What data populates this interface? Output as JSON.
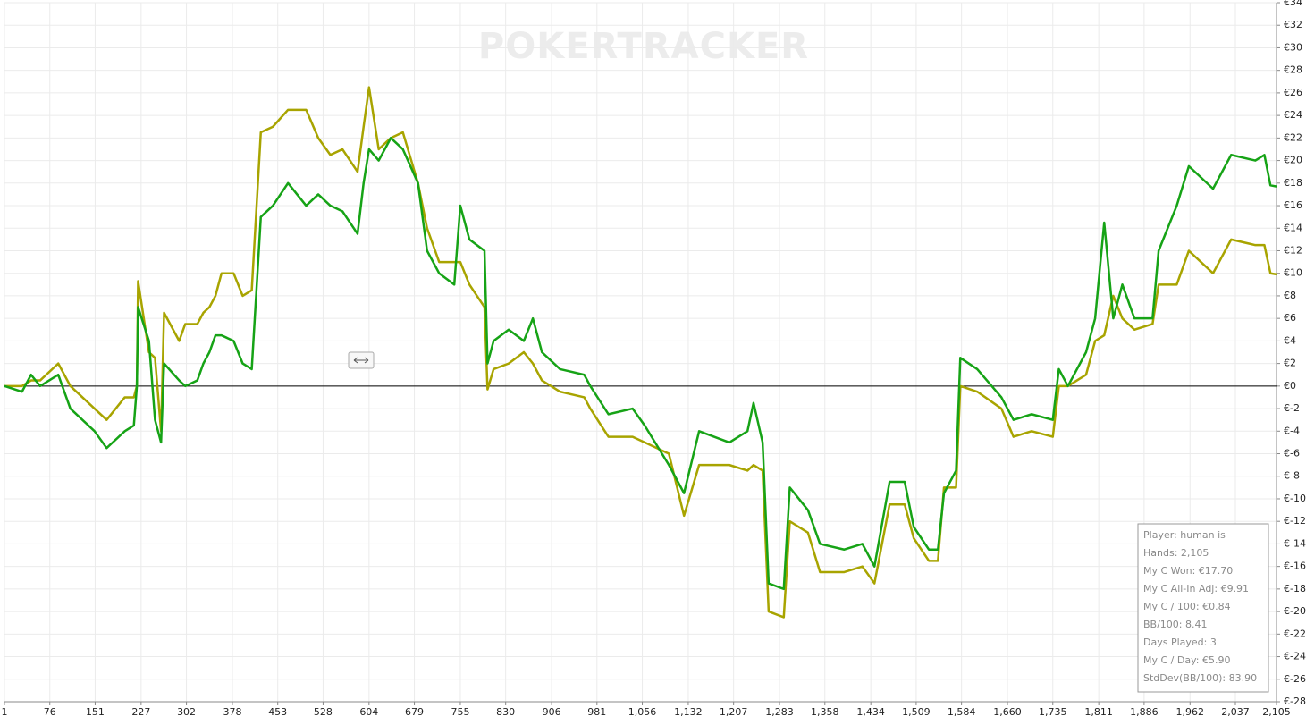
{
  "chart_data": {
    "type": "line",
    "watermark": "POKERTRACKER",
    "x": [
      1,
      30,
      45,
      60,
      90,
      110,
      150,
      170,
      200,
      215,
      220,
      222,
      240,
      250,
      260,
      265,
      290,
      300,
      320,
      330,
      340,
      350,
      360,
      380,
      395,
      410,
      425,
      445,
      470,
      500,
      520,
      540,
      560,
      585,
      595,
      604,
      620,
      640,
      660,
      685,
      700,
      720,
      745,
      755,
      770,
      795,
      800,
      810,
      835,
      860,
      875,
      890,
      920,
      960,
      970,
      1000,
      1040,
      1060,
      1100,
      1125,
      1150,
      1200,
      1230,
      1240,
      1255,
      1265,
      1290,
      1300,
      1330,
      1350,
      1390,
      1420,
      1440,
      1465,
      1490,
      1505,
      1530,
      1545,
      1555,
      1575,
      1582,
      1610,
      1650,
      1670,
      1700,
      1735,
      1745,
      1760,
      1790,
      1805,
      1820,
      1835,
      1850,
      1870,
      1900,
      1910,
      1940,
      1960,
      2000,
      2030,
      2070,
      2085,
      2095,
      2105
    ],
    "series": [
      {
        "color": "#a8a400",
        "values": [
          0,
          0,
          0.5,
          0.5,
          2,
          0,
          -2,
          -3,
          -1,
          -1,
          0,
          9.3,
          3,
          2.5,
          -4,
          6.5,
          4,
          5.5,
          5.5,
          6.5,
          7,
          8,
          10,
          10,
          8,
          8.5,
          22.5,
          23,
          24.5,
          24.5,
          22,
          20.5,
          21,
          19,
          23,
          26.5,
          21,
          22,
          22.5,
          18,
          14,
          11,
          11,
          11,
          9,
          7,
          -0.3,
          1.5,
          2,
          3,
          2,
          0.5,
          -0.5,
          -1,
          -2,
          -4.5,
          -4.5,
          -5,
          -6,
          -11.5,
          -7,
          -7,
          -7.5,
          -7,
          -7.5,
          -20,
          -20.5,
          -12,
          -13,
          -16.5,
          -16.5,
          -16,
          -17.5,
          -10.5,
          -10.5,
          -13.5,
          -15.5,
          -15.5,
          -9,
          -9,
          0,
          -0.5,
          -2,
          -4.5,
          -4,
          -4.5,
          0,
          0,
          1,
          4,
          4.5,
          8,
          6,
          5,
          5.5,
          9,
          9,
          12,
          10,
          13,
          12.5,
          12.5,
          10,
          9.91
        ]
      },
      {
        "color": "#16a316",
        "values": [
          0,
          -0.5,
          1,
          0,
          1,
          -2,
          -4,
          -5.5,
          -4,
          -3.5,
          0,
          7,
          4,
          -3,
          -5,
          2,
          0.5,
          0,
          0.5,
          2,
          3,
          4.5,
          4.5,
          4,
          2,
          1.5,
          15,
          16,
          18,
          16,
          17,
          16,
          15.5,
          13.5,
          18,
          21,
          20,
          22,
          21,
          18,
          12,
          10,
          9,
          16,
          13,
          12,
          2,
          4,
          5,
          4,
          6,
          3,
          1.5,
          1,
          0,
          -2.5,
          -2,
          -3.5,
          -7,
          -9.5,
          -4,
          -5,
          -4,
          -1.5,
          -5,
          -17.5,
          -18,
          -9,
          -11,
          -14,
          -14.5,
          -14,
          -16,
          -8.5,
          -8.5,
          -12.5,
          -14.5,
          -14.5,
          -9.5,
          -7.5,
          2.5,
          1.5,
          -1,
          -3,
          -2.5,
          -3,
          1.5,
          0,
          3,
          6,
          14.5,
          6,
          9,
          6,
          6,
          12,
          16,
          19.5,
          17.5,
          20.5,
          20,
          20.5,
          17.8,
          17.7
        ]
      }
    ],
    "xlim": [
      1,
      2105
    ],
    "xticks": [
      1,
      76,
      151,
      227,
      302,
      378,
      453,
      528,
      604,
      679,
      755,
      830,
      906,
      981,
      {
        "value": 1056,
        "label": "1,056"
      },
      {
        "value": 1132,
        "label": "1,132"
      },
      {
        "value": 1207,
        "label": "1,207"
      },
      {
        "value": 1283,
        "label": "1,283"
      },
      {
        "value": 1358,
        "label": "1,358"
      },
      {
        "value": 1434,
        "label": "1,434"
      },
      {
        "value": 1509,
        "label": "1,509"
      },
      {
        "value": 1584,
        "label": "1,584"
      },
      {
        "value": 1660,
        "label": "1,660"
      },
      {
        "value": 1735,
        "label": "1,735"
      },
      {
        "value": 1811,
        "label": "1,811"
      },
      {
        "value": 1886,
        "label": "1,886"
      },
      {
        "value": 1962,
        "label": "1,962"
      },
      {
        "value": 2037,
        "label": "2,037"
      },
      {
        "value": 2105,
        "label": "2,105"
      }
    ],
    "ylim": [
      -28,
      34
    ],
    "yticks": [
      {
        "value": -28,
        "label": "€-28"
      },
      {
        "value": -26,
        "label": "€-26"
      },
      {
        "value": -24,
        "label": "€-24"
      },
      {
        "value": -22,
        "label": "€-22"
      },
      {
        "value": -20,
        "label": "€-20"
      },
      {
        "value": -18,
        "label": "€-18"
      },
      {
        "value": -16,
        "label": "€-16"
      },
      {
        "value": -14,
        "label": "€-14"
      },
      {
        "value": -12,
        "label": "€-12"
      },
      {
        "value": -10,
        "label": "€-10"
      },
      {
        "value": -8,
        "label": "€-8"
      },
      {
        "value": -6,
        "label": "€-6"
      },
      {
        "value": -4,
        "label": "€-4"
      },
      {
        "value": -2,
        "label": "€-2"
      },
      {
        "value": 0,
        "label": "€0"
      },
      {
        "value": 2,
        "label": "€2"
      },
      {
        "value": 4,
        "label": "€4"
      },
      {
        "value": 6,
        "label": "€6"
      },
      {
        "value": 8,
        "label": "€8"
      },
      {
        "value": 10,
        "label": "€10"
      },
      {
        "value": 12,
        "label": "€12"
      },
      {
        "value": 14,
        "label": "€14"
      },
      {
        "value": 16,
        "label": "€16"
      },
      {
        "value": 18,
        "label": "€18"
      },
      {
        "value": 20,
        "label": "€20"
      },
      {
        "value": 22,
        "label": "€22"
      },
      {
        "value": 24,
        "label": "€24"
      },
      {
        "value": 26,
        "label": "€26"
      },
      {
        "value": 28,
        "label": "€28"
      },
      {
        "value": 30,
        "label": "€30"
      },
      {
        "value": 32,
        "label": "€32"
      },
      {
        "value": 34,
        "label": "€34"
      }
    ],
    "grid": true,
    "stats": [
      "Player: human is",
      "Hands: 2,105",
      "My C Won: €17.70",
      "My C All-In Adj: €9.91",
      "My C / 100: €0.84",
      "BB/100: 8.41",
      "Days Played: 3",
      "My C / Day: €5.90",
      "StdDev(BB/100): 83.90"
    ]
  }
}
